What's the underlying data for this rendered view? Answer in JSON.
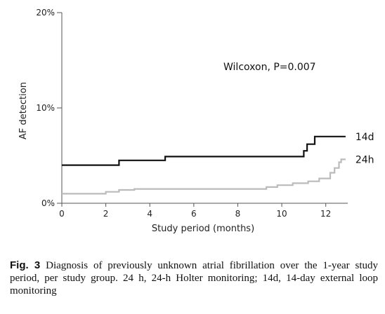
{
  "chart_data": {
    "type": "line",
    "step": true,
    "title": "",
    "xlabel": "Study period (months)",
    "ylabel": "AF detection",
    "xlim": [
      0,
      13
    ],
    "ylim": [
      0,
      20
    ],
    "x_ticks": [
      0,
      2,
      4,
      6,
      8,
      10,
      12
    ],
    "y_ticks": [
      0,
      10,
      20
    ],
    "y_tick_labels": [
      "0%",
      "10%",
      "20%"
    ],
    "grid": false,
    "annotation": "Wilcoxon, P=0.007",
    "series": [
      {
        "name": "14d",
        "color": "#111111",
        "x": [
          0,
          2.6,
          2.6,
          4.7,
          4.7,
          11.0,
          11.0,
          11.15,
          11.15,
          11.35,
          11.35,
          11.5,
          11.5,
          12.9
        ],
        "y": [
          4.0,
          4.0,
          4.5,
          4.5,
          4.9,
          4.9,
          5.5,
          5.5,
          6.2,
          6.2,
          6.2,
          6.2,
          7.0,
          7.0
        ]
      },
      {
        "name": "24h",
        "color": "#bbbbbb",
        "x": [
          0,
          2.0,
          2.0,
          2.6,
          2.6,
          3.3,
          3.3,
          9.3,
          9.3,
          9.8,
          9.8,
          10.5,
          10.5,
          11.2,
          11.2,
          11.7,
          11.7,
          12.2,
          12.2,
          12.4,
          12.4,
          12.6,
          12.6,
          12.7,
          12.7,
          12.9
        ],
        "y": [
          1.0,
          1.0,
          1.2,
          1.2,
          1.4,
          1.4,
          1.5,
          1.5,
          1.7,
          1.7,
          1.9,
          1.9,
          2.1,
          2.1,
          2.3,
          2.3,
          2.6,
          2.6,
          3.2,
          3.2,
          3.7,
          3.7,
          4.3,
          4.3,
          4.6,
          4.6
        ]
      }
    ]
  },
  "caption": {
    "label": "Fig. 3",
    "text": "Diagnosis of previously unknown atrial fibrillation over the 1-year study period, per study group. 24 h, 24-h Holter monitoring; 14d, 14-day external loop monitoring"
  }
}
